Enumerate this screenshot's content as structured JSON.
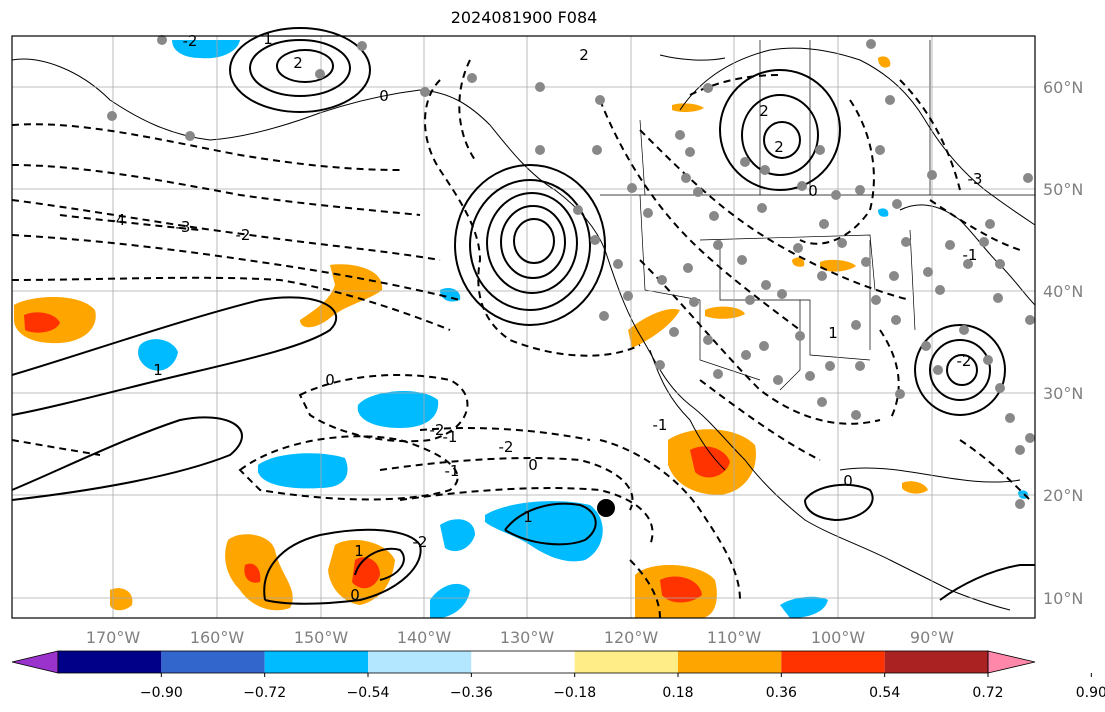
{
  "title": "2024081900 F084",
  "map": {
    "lon_ticks": [
      "170°W",
      "160°W",
      "150°W",
      "140°W",
      "130°W",
      "120°W",
      "110°W",
      "100°W",
      "90°W"
    ],
    "lat_ticks": [
      "60°N",
      "50°N",
      "40°N",
      "30°N",
      "20°N",
      "10°N"
    ],
    "gridlines": true,
    "contour_labels": [
      "2",
      "-2",
      "1",
      "0",
      "-3",
      "-4",
      "-2",
      "0",
      "-1",
      "-2",
      "2",
      "-2",
      "-1",
      "0",
      "1",
      "-2",
      "1",
      "0",
      "-1",
      "2",
      "2",
      "0",
      "1",
      "-3",
      "-1",
      "-2",
      "0",
      "1"
    ]
  },
  "colorbar": {
    "tick_labels": [
      "−0.90",
      "−0.72",
      "−0.54",
      "−0.36",
      "−0.18",
      "0.18",
      "0.36",
      "0.54",
      "0.72",
      "0.90"
    ],
    "colors": [
      "#9933cc",
      "#000088",
      "#3366cc",
      "#00bbff",
      "#b3e6ff",
      "#ffffff",
      "#ffee88",
      "#ffa500",
      "#ff3300",
      "#aa2222",
      "#ff88aa"
    ]
  }
}
